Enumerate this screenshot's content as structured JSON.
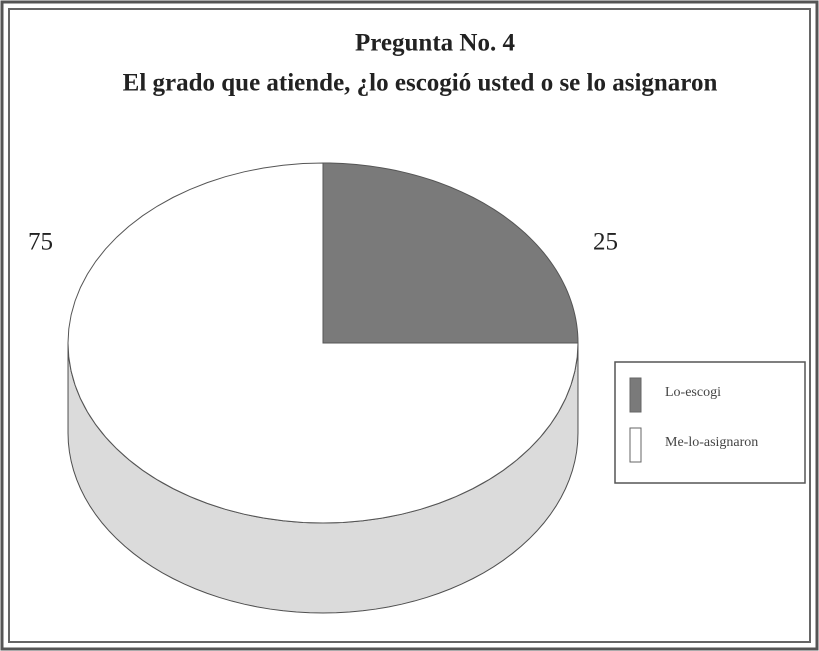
{
  "chart_data": {
    "type": "pie",
    "title": "Pregunta No. 4",
    "subtitle": "El grado que atiende, ¿lo escogió usted o se lo asignaron",
    "categories": [
      "Lo-escogi",
      "Me-lo-asignaron"
    ],
    "values": [
      25,
      75
    ],
    "colors": [
      "#7a7a7a",
      "#ffffff"
    ],
    "legend": "right"
  }
}
